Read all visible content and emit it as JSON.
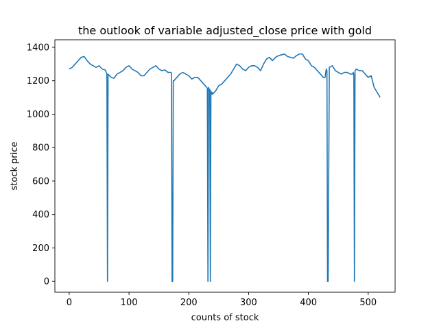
{
  "chart_data": {
    "type": "line",
    "title": "the outlook of variable adjusted_close price with gold",
    "xlabel": "counts of stock",
    "ylabel": "stock price",
    "xlim": [
      -24,
      545
    ],
    "ylim": [
      -65,
      1445
    ],
    "xticks": [
      0,
      100,
      200,
      300,
      400,
      500
    ],
    "yticks": [
      0,
      200,
      400,
      600,
      800,
      1000,
      1200,
      1400
    ],
    "grid": false,
    "line_color": "#1f77b4",
    "series": [
      {
        "x": [
          0,
          5,
          10,
          15,
          20,
          25,
          30,
          35,
          40,
          45,
          50,
          55,
          60,
          62,
          63,
          64,
          65,
          70,
          75,
          80,
          85,
          90,
          95,
          100,
          105,
          110,
          115,
          120,
          125,
          130,
          135,
          140,
          145,
          150,
          155,
          160,
          165,
          170,
          171,
          172,
          173,
          174,
          175,
          180,
          185,
          190,
          195,
          200,
          205,
          210,
          215,
          220,
          225,
          230,
          231,
          232,
          233,
          234,
          235,
          236,
          237,
          238,
          239,
          240,
          245,
          250,
          255,
          260,
          265,
          270,
          275,
          280,
          285,
          290,
          295,
          300,
          305,
          310,
          315,
          320,
          325,
          330,
          335,
          340,
          345,
          350,
          355,
          360,
          365,
          370,
          375,
          380,
          385,
          390,
          395,
          400,
          405,
          410,
          415,
          420,
          425,
          428,
          429,
          430,
          431,
          432,
          433,
          435,
          440,
          445,
          450,
          455,
          460,
          465,
          470,
          474,
          475,
          476,
          477,
          478,
          480,
          485,
          490,
          495,
          500,
          505,
          510,
          515,
          520
        ],
        "y": [
          1270,
          1280,
          1300,
          1320,
          1340,
          1345,
          1320,
          1300,
          1290,
          1280,
          1290,
          1270,
          1265,
          1250,
          1240,
          0,
          1240,
          1220,
          1215,
          1240,
          1250,
          1260,
          1280,
          1290,
          1270,
          1260,
          1250,
          1230,
          1230,
          1250,
          1270,
          1280,
          1290,
          1270,
          1260,
          1265,
          1250,
          1250,
          1245,
          0,
          0,
          1200,
          1200,
          1220,
          1240,
          1250,
          1240,
          1230,
          1210,
          1220,
          1220,
          1200,
          1180,
          1160,
          1155,
          0,
          1160,
          1140,
          1150,
          0,
          1140,
          1120,
          1130,
          1120,
          1140,
          1170,
          1180,
          1200,
          1220,
          1240,
          1270,
          1300,
          1290,
          1270,
          1260,
          1280,
          1290,
          1290,
          1280,
          1260,
          1300,
          1330,
          1340,
          1320,
          1340,
          1350,
          1355,
          1360,
          1345,
          1340,
          1335,
          1350,
          1360,
          1360,
          1330,
          1320,
          1290,
          1280,
          1260,
          1240,
          1220,
          1220,
          1250,
          1270,
          1260,
          0,
          0,
          1280,
          1290,
          1260,
          1250,
          1240,
          1250,
          1250,
          1240,
          1240,
          1250,
          1240,
          0,
          1260,
          1270,
          1260,
          1260,
          1240,
          1220,
          1230,
          1160,
          1130,
          1100
        ]
      }
    ]
  }
}
